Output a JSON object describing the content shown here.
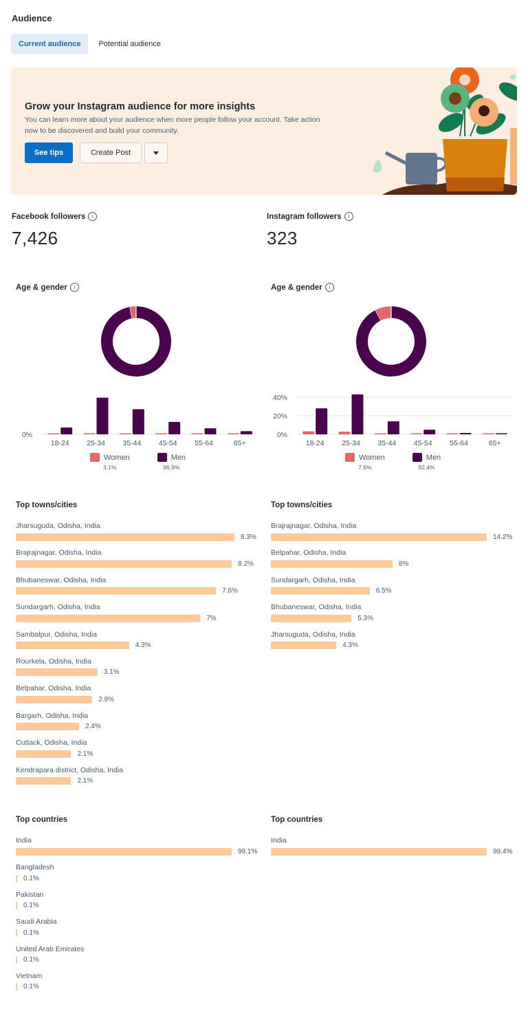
{
  "page": {
    "title": "Audience",
    "tabs": [
      {
        "label": "Current audience",
        "active": true
      },
      {
        "label": "Potential audience",
        "active": false
      }
    ]
  },
  "banner": {
    "title": "Grow your Instagram audience for more insights",
    "description": "You can learn more about your audience when more people follow your account. Take action now to be discovered and build your community.",
    "primary_button": "See tips",
    "secondary_button": "Create Post",
    "dropdown_icon": "caret-down-icon"
  },
  "followers": {
    "facebook": {
      "label": "Facebook followers",
      "value": "7,426",
      "info_icon": "info-icon"
    },
    "instagram": {
      "label": "Instagram followers",
      "value": "323",
      "info_icon": "info-icon"
    }
  },
  "colors": {
    "women": "#e8666a",
    "men": "#4a044e",
    "bar": "#fdc999",
    "accent": "#0a6ec7",
    "banner_bg": "#fdeee2"
  },
  "chart_data": [
    {
      "id": "facebook-age-gender",
      "type": "bar",
      "title": "Age & gender",
      "categories": [
        "18-24",
        "25-34",
        "35-44",
        "45-54",
        "55-64",
        "65+"
      ],
      "series": [
        {
          "name": "Women",
          "total": "3.1%",
          "values": [
            0.3,
            1.2,
            0.6,
            0.3,
            0.4,
            0.3
          ]
        },
        {
          "name": "Men",
          "total": "96.9%",
          "values": [
            7.3,
            39.4,
            27.0,
            13.3,
            6.5,
            3.4
          ]
        }
      ],
      "yticks": [
        "0%"
      ],
      "ytick_values": [
        0
      ],
      "ylim": [
        0,
        46
      ],
      "donut": [
        {
          "name": "Women",
          "value": 3.1
        },
        {
          "name": "Men",
          "value": 96.9
        }
      ],
      "legend": "bottom"
    },
    {
      "id": "instagram-age-gender",
      "type": "bar",
      "title": "Age & gender",
      "categories": [
        "18-24",
        "25-34",
        "35-44",
        "45-54",
        "55-64",
        "65+"
      ],
      "series": [
        {
          "name": "Women",
          "total": "7.6%",
          "values": [
            3.2,
            2.9,
            1.0,
            0.2,
            0.2,
            0.1
          ]
        },
        {
          "name": "Men",
          "total": "92.4%",
          "values": [
            28.0,
            43.0,
            14.0,
            5.0,
            1.5,
            0.9
          ]
        }
      ],
      "yticks": [
        "0%",
        "20%",
        "40%"
      ],
      "ytick_values": [
        0,
        20,
        40
      ],
      "ylim": [
        0,
        46
      ],
      "donut": [
        {
          "name": "Women",
          "value": 7.6
        },
        {
          "name": "Men",
          "value": 92.4
        }
      ],
      "legend": "bottom"
    }
  ],
  "facebook": {
    "towns_title": "Top towns/cities",
    "towns": [
      {
        "name": "Jharsuguda, Odisha, India",
        "value": "8.3%",
        "pct": 8.3
      },
      {
        "name": "Brajrajnagar, Odisha, India",
        "value": "8.2%",
        "pct": 8.2
      },
      {
        "name": "Bhubaneswar, Odisha, India",
        "value": "7.6%",
        "pct": 7.6
      },
      {
        "name": "Sundargarh, Odisha, India",
        "value": "7%",
        "pct": 7.0
      },
      {
        "name": "Sambalpur, Odisha, India",
        "value": "4.3%",
        "pct": 4.3
      },
      {
        "name": "Rourkela, Odisha, India",
        "value": "3.1%",
        "pct": 3.1
      },
      {
        "name": "Belpahar, Odisha, India",
        "value": "2.9%",
        "pct": 2.9
      },
      {
        "name": "Bargarh, Odisha, India",
        "value": "2.4%",
        "pct": 2.4
      },
      {
        "name": "Cuttack, Odisha, India",
        "value": "2.1%",
        "pct": 2.1
      },
      {
        "name": "Kendrapara district, Odisha, India",
        "value": "2.1%",
        "pct": 2.1
      }
    ],
    "countries_title": "Top countries",
    "countries": [
      {
        "name": "India",
        "value": "99.1%",
        "pct": 99.1
      },
      {
        "name": "Bangladesh",
        "value": "0.1%",
        "pct": 0.1
      },
      {
        "name": "Pakistan",
        "value": "0.1%",
        "pct": 0.1
      },
      {
        "name": "Saudi Arabia",
        "value": "0.1%",
        "pct": 0.1
      },
      {
        "name": "United Arab Emirates",
        "value": "0.1%",
        "pct": 0.1
      },
      {
        "name": "Vietnam",
        "value": "0.1%",
        "pct": 0.1
      }
    ]
  },
  "instagram": {
    "towns_title": "Top towns/cities",
    "towns": [
      {
        "name": "Brajrajnagar, Odisha, India",
        "value": "14.2%",
        "pct": 14.2
      },
      {
        "name": "Belpahar, Odisha, India",
        "value": "8%",
        "pct": 8.0
      },
      {
        "name": "Sundargarh, Odisha, India",
        "value": "6.5%",
        "pct": 6.5
      },
      {
        "name": "Bhubaneswar, Odisha, India",
        "value": "5.3%",
        "pct": 5.3
      },
      {
        "name": "Jharsuguda, Odisha, India",
        "value": "4.3%",
        "pct": 4.3
      }
    ],
    "countries_title": "Top countries",
    "countries": [
      {
        "name": "India",
        "value": "99.4%",
        "pct": 99.4
      }
    ]
  }
}
